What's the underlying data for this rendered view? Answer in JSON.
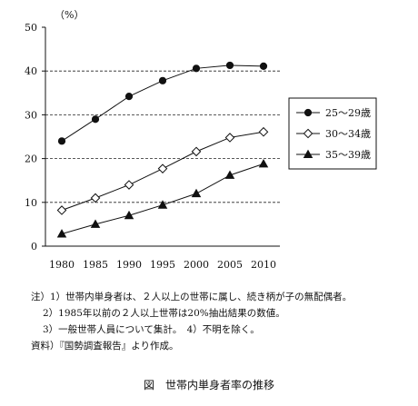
{
  "chart_data": {
    "type": "line",
    "title": "",
    "ylabel": "（%）",
    "xlabel": "",
    "ylim": [
      0,
      50
    ],
    "y_ticks": [
      0,
      10,
      20,
      30,
      40,
      50
    ],
    "x": [
      "1980",
      "1985",
      "1990",
      "1995",
      "2000",
      "2005",
      "2010"
    ],
    "grid": "horizontal dashed at 10, 20, 30, 40",
    "legend_position": "right",
    "series": [
      {
        "name": "25～29歳",
        "marker": "filled-circle",
        "values": [
          24.0,
          29.0,
          34.2,
          37.8,
          40.6,
          41.3,
          41.1
        ]
      },
      {
        "name": "30～34歳",
        "marker": "open-diamond",
        "values": [
          8.2,
          11.0,
          14.0,
          17.7,
          21.6,
          24.8,
          26.1
        ]
      },
      {
        "name": "35～39歳",
        "marker": "filled-triangle",
        "values": [
          2.8,
          5.0,
          7.0,
          9.4,
          12.0,
          16.2,
          18.8
        ]
      }
    ]
  },
  "notes": {
    "line1": "注）1）世帯内単身者は、２人以上の世帯に属し、続き柄が子の無配偶者。",
    "line2": "2）1985年以前の２人以上世帯は20%抽出結果の数値。",
    "line3": "3）一般世帯人員について集計。　4）不明を除く。",
    "source": "資料）『国勢調査報告』より作成。"
  },
  "figure_caption": "図　世帯内単身者率の推移"
}
